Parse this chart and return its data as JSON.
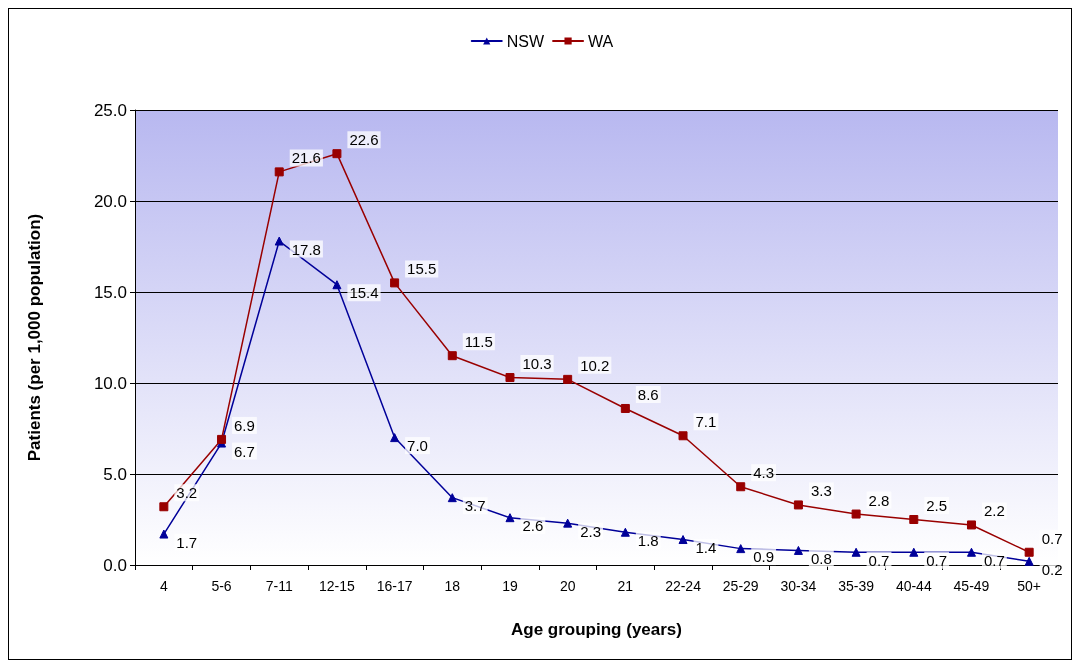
{
  "chart_data": {
    "type": "line",
    "xlabel": "Age grouping (years)",
    "ylabel": "Patients (per 1,000 population)",
    "categories": [
      "4",
      "5-6",
      "7-11",
      "12-15",
      "16-17",
      "18",
      "19",
      "20",
      "21",
      "22-24",
      "25-29",
      "30-34",
      "35-39",
      "40-44",
      "45-49",
      "50+"
    ],
    "series": [
      {
        "name": "NSW",
        "color": "#000099",
        "marker": "triangle",
        "values": [
          1.7,
          6.7,
          17.8,
          15.4,
          7.0,
          3.7,
          2.6,
          2.3,
          1.8,
          1.4,
          0.9,
          0.8,
          0.7,
          0.7,
          0.7,
          0.2
        ],
        "value_labels": [
          "1.7",
          "6.7",
          "17.8",
          "15.4",
          "7.0",
          "3.7",
          "2.6",
          "2.3",
          "1.8",
          "1.4",
          "0.9",
          "0.8",
          "0.7",
          "0.7",
          "0.7",
          "0.2"
        ]
      },
      {
        "name": "WA",
        "color": "#990000",
        "marker": "square",
        "values": [
          3.2,
          6.9,
          21.6,
          22.6,
          15.5,
          11.5,
          10.3,
          10.2,
          8.6,
          7.1,
          4.3,
          3.3,
          2.8,
          2.5,
          2.2,
          0.7
        ],
        "value_labels": [
          "3.2",
          "6.9",
          "21.6",
          "22.6",
          "15.5",
          "11.5",
          "10.3",
          "10.2",
          "8.6",
          "7.1",
          "4.3",
          "3.3",
          "2.8",
          "2.5",
          "2.2",
          "0.7"
        ]
      }
    ],
    "ylim": [
      0,
      25
    ],
    "yticks": [
      {
        "value": 0,
        "label": "0.0"
      },
      {
        "value": 5,
        "label": "5.0"
      },
      {
        "value": 10,
        "label": "10.0"
      },
      {
        "value": 15,
        "label": "15.0"
      },
      {
        "value": 20,
        "label": "20.0"
      },
      {
        "value": 25,
        "label": "25.0"
      }
    ],
    "grid": "y",
    "legend": "top",
    "line_style": "solid"
  }
}
